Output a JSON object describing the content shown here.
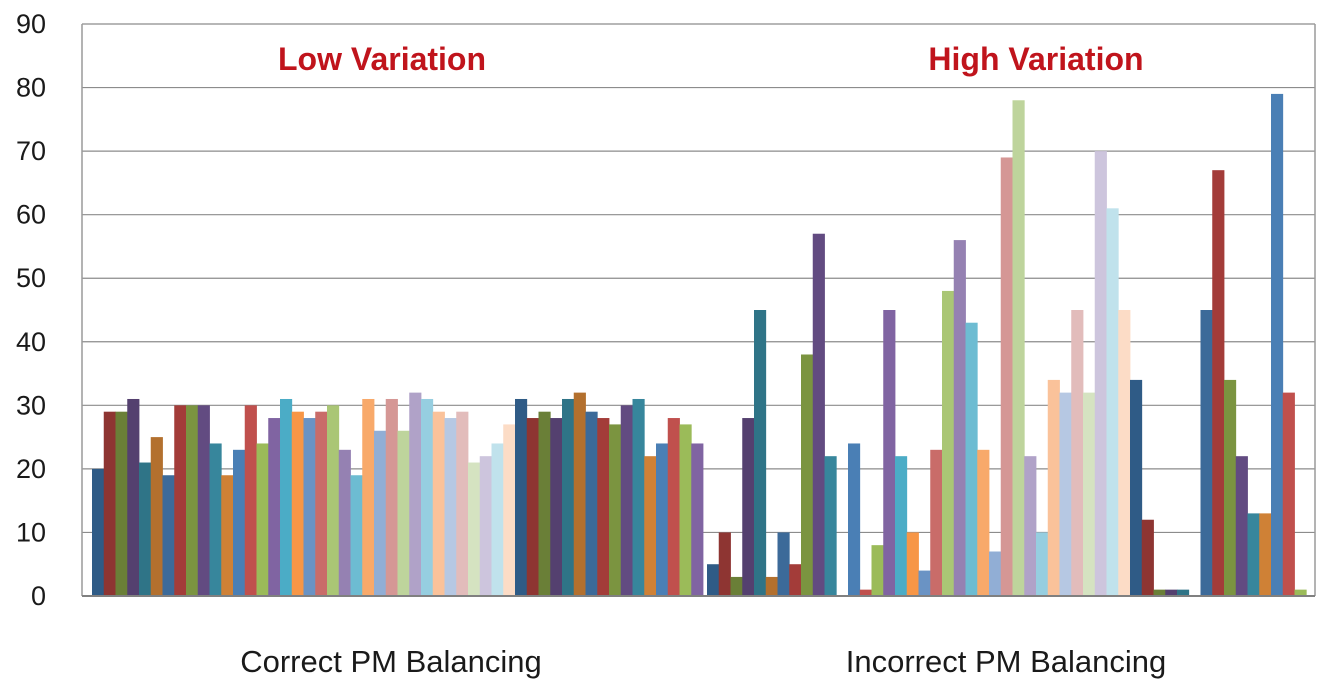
{
  "chart_data": {
    "type": "bar",
    "categories": [
      "Correct PM Balancing",
      "Incorrect PM Balancing"
    ],
    "ylim": [
      0,
      90
    ],
    "yticks": [
      "0",
      "10",
      "20",
      "30",
      "40",
      "50",
      "60",
      "70",
      "80",
      "90"
    ],
    "grid": true,
    "annotations": [
      "Low Variation",
      "High Variation"
    ],
    "series_values": [
      [
        20,
        29,
        29,
        31,
        21,
        25,
        19,
        30,
        30,
        30,
        24,
        19,
        23,
        30,
        24,
        28,
        31,
        29,
        28,
        29,
        30,
        23,
        19,
        31,
        26,
        31,
        26,
        32,
        31,
        29,
        28,
        29,
        21,
        22,
        24,
        27,
        31,
        28,
        29,
        28,
        31,
        32,
        29,
        28,
        27,
        30,
        31,
        22,
        24,
        28,
        27,
        24
      ],
      [
        5,
        10,
        3,
        28,
        45,
        3,
        10,
        5,
        38,
        57,
        22,
        0,
        24,
        1,
        8,
        45,
        22,
        10,
        4,
        23,
        48,
        56,
        43,
        23,
        7,
        69,
        78,
        22,
        10,
        34,
        32,
        45,
        32,
        70,
        61,
        45,
        34,
        12,
        1,
        1,
        1,
        0,
        45,
        67,
        34,
        22,
        13,
        13,
        79,
        32,
        1,
        0
      ]
    ],
    "colors": [
      "#2f5b86",
      "#8e3532",
      "#6a7f37",
      "#54406f",
      "#2f7487",
      "#b3702e",
      "#3c6a99",
      "#a33c39",
      "#7b9440",
      "#624b81",
      "#37869c",
      "#cf8136",
      "#4a7fb5",
      "#c0504d",
      "#9bbb59",
      "#8064a2",
      "#4bacc6",
      "#f79646",
      "#6a93c4",
      "#c96c69",
      "#aac675",
      "#9581b2",
      "#6dbcd2",
      "#f8a96a",
      "#91aed5",
      "#d59795",
      "#bed49c",
      "#b0a2c8",
      "#96cee0",
      "#fac29a",
      "#b6c8e3",
      "#e2bcbb",
      "#d5e3c1",
      "#cdc5dd",
      "#c0e2ec",
      "#fcdcc6"
    ]
  }
}
